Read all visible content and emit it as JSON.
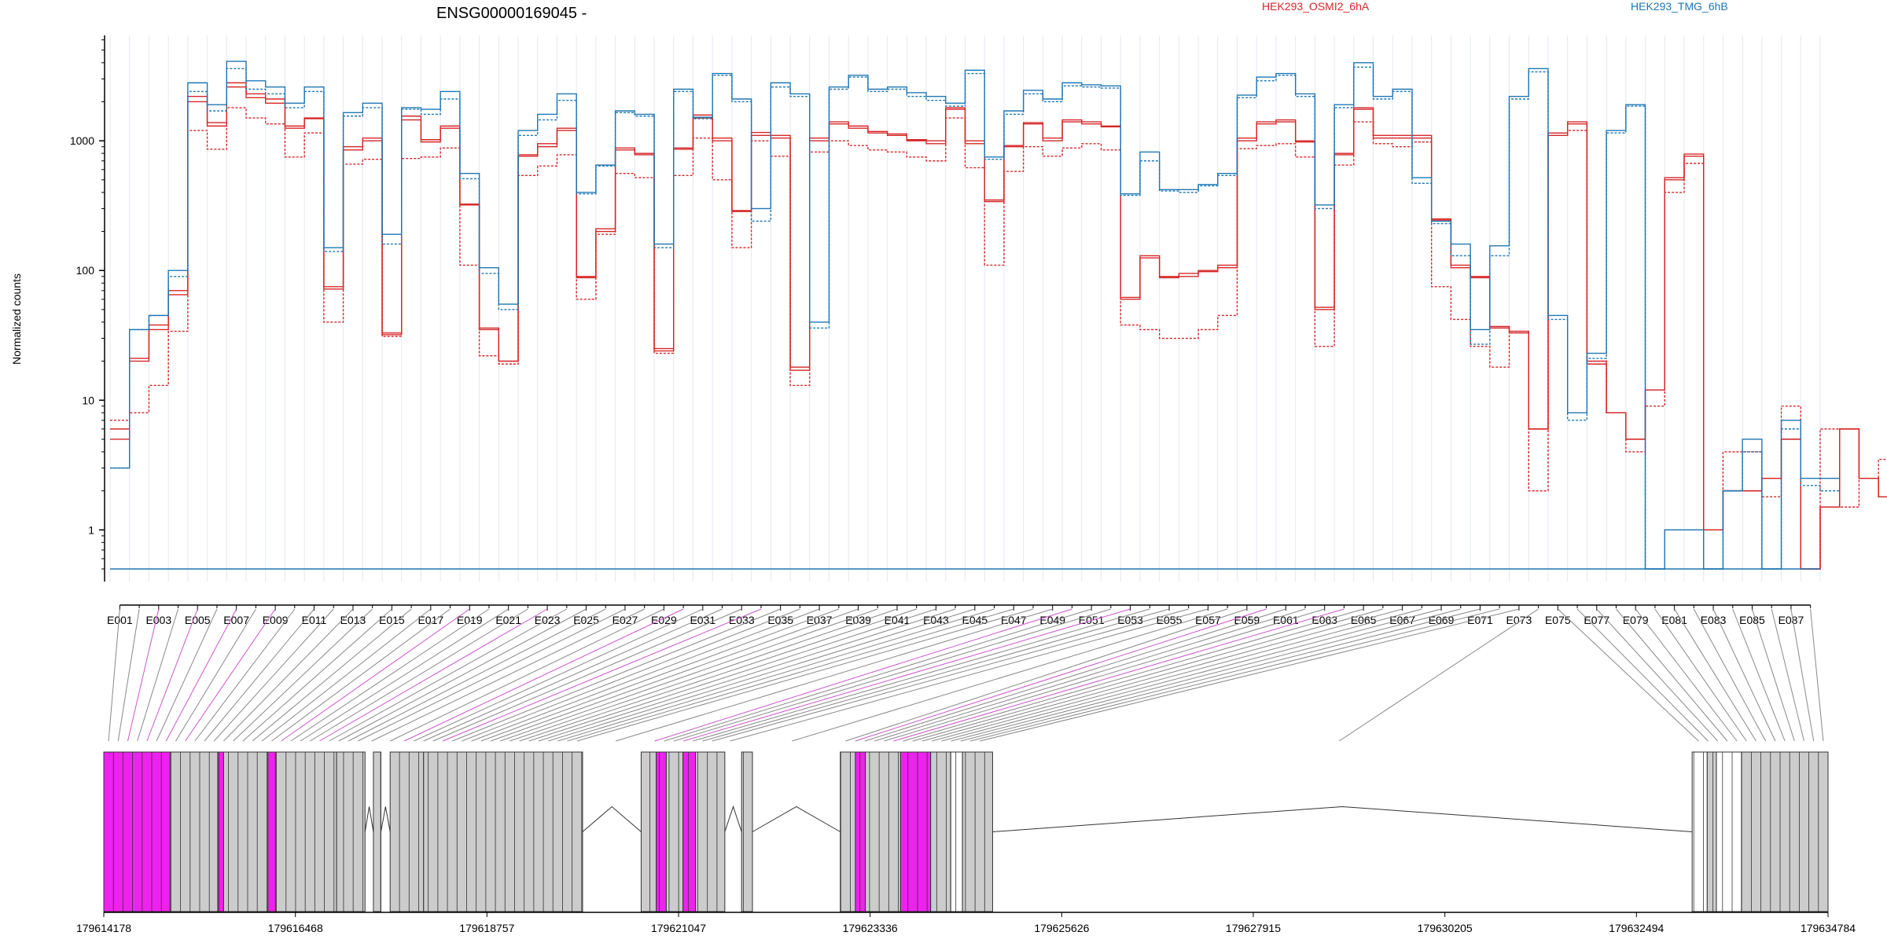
{
  "chart_data": {
    "type": "line",
    "title": "ENSG00000169045 -",
    "ylabel": "Normalized counts",
    "yscale": "log",
    "ylim": [
      0.4,
      6500
    ],
    "yticks": [
      1,
      10,
      100,
      1000
    ],
    "ytick_labels": [
      "1",
      "10",
      "100",
      "1000"
    ],
    "legend": [
      {
        "name": "HEK293_OSMI2_6hA",
        "color": "#d62728"
      },
      {
        "name": "HEK293_TMG_6hB",
        "color": "#1f77b4"
      }
    ],
    "exon_labels": [
      "E001",
      "E003",
      "E005",
      "E007",
      "E009",
      "E011",
      "E013",
      "E015",
      "E017",
      "E019",
      "E021",
      "E023",
      "E025",
      "E027",
      "E029",
      "E031",
      "E033",
      "E035",
      "E037",
      "E039",
      "E041",
      "E043",
      "E045",
      "E047",
      "E049",
      "E051",
      "E053",
      "E055",
      "E057",
      "E059",
      "E061",
      "E063",
      "E065",
      "E067",
      "E069",
      "E071",
      "E073",
      "E075",
      "E077",
      "E079",
      "E081",
      "E083",
      "E085",
      "E087"
    ],
    "n_exons": 88,
    "highlighted_exons": [
      2,
      4,
      6,
      8,
      18,
      22,
      29,
      33,
      49,
      52,
      59,
      63
    ],
    "series": [
      {
        "name": "HEK293_OSMI2_6hA rep1",
        "color": "#d62728",
        "dashed": false,
        "values": [
          5,
          21,
          38,
          70,
          2200,
          1380,
          2600,
          2150,
          1950,
          1300,
          1480,
          75,
          900,
          1050,
          32,
          1550,
          1020,
          1300,
          325,
          36,
          20,
          780,
          950,
          1250,
          90,
          210,
          880,
          800,
          25,
          880,
          1580,
          1050,
          290,
          1160,
          1100,
          18,
          1050,
          1400,
          1300,
          1180,
          1130,
          1020,
          1000,
          1800,
          1000,
          350,
          920,
          1380,
          1050,
          1450,
          1400,
          1300,
          62,
          130,
          90,
          95,
          100,
          110,
          1050,
          1400,
          1450,
          1000,
          52,
          800,
          1800,
          1100,
          1100,
          1100,
          250,
          110,
          90,
          37,
          34,
          6,
          1150,
          1400,
          20,
          8,
          5,
          12,
          520,
          790,
          1.0,
          2.0,
          2.0,
          2.5,
          5,
          0.5,
          1.5,
          6,
          2.5,
          1.8
        ]
      },
      {
        "name": "HEK293_OSMI2_6hA rep2",
        "color": "#d62728",
        "dashed": true,
        "values": [
          7,
          8,
          13,
          34,
          1200,
          860,
          1800,
          1500,
          1350,
          750,
          1150,
          40,
          660,
          720,
          31,
          730,
          750,
          880,
          110,
          22,
          19,
          540,
          640,
          780,
          60,
          190,
          560,
          520,
          23,
          540,
          1050,
          500,
          150,
          1000,
          760,
          13,
          820,
          1000,
          920,
          850,
          820,
          750,
          700,
          1500,
          620,
          110,
          580,
          900,
          760,
          880,
          950,
          850,
          38,
          35,
          30,
          30,
          35,
          45,
          870,
          920,
          950,
          750,
          26,
          650,
          1400,
          950,
          900,
          980,
          75,
          42,
          26,
          18,
          34,
          2,
          1150,
          1200,
          20,
          8,
          4,
          9,
          400,
          670,
          1.0,
          4.0,
          4.0,
          1.8,
          9,
          0.5,
          6,
          1.5,
          2.5,
          3.5
        ]
      },
      {
        "name": "HEK293_OSMI2_6hA rep3",
        "color": "#d62728",
        "dashed": false,
        "values": [
          6,
          20,
          35,
          65,
          2000,
          1300,
          2800,
          2300,
          2100,
          1250,
          1500,
          72,
          850,
          1000,
          33,
          1450,
          980,
          1250,
          320,
          35,
          20,
          760,
          900,
          1200,
          88,
          200,
          850,
          780,
          24,
          860,
          1500,
          1000,
          285,
          1100,
          1050,
          17,
          1000,
          1350,
          1250,
          1150,
          1100,
          1000,
          950,
          1750,
          950,
          340,
          900,
          1350,
          1000,
          1400,
          1350,
          1280,
          60,
          125,
          88,
          90,
          98,
          105,
          1000,
          1350,
          1400,
          980,
          50,
          780,
          1750,
          1050,
          1050,
          1050,
          245,
          105,
          88,
          36,
          33,
          6,
          1100,
          1350,
          19,
          8,
          5,
          12,
          500,
          760,
          1.0,
          2.0,
          2.0,
          2.5,
          5,
          0.5,
          1.5,
          6,
          2.5,
          1.8
        ]
      },
      {
        "name": "HEK293_TMG_6hB rep1",
        "color": "#1f77b4",
        "dashed": false,
        "values": [
          3,
          35,
          45,
          100,
          2800,
          1900,
          4100,
          2900,
          2600,
          1950,
          2600,
          150,
          1650,
          1950,
          190,
          1800,
          1750,
          2400,
          560,
          105,
          55,
          1200,
          1600,
          2300,
          400,
          650,
          1700,
          1600,
          160,
          2500,
          1520,
          3300,
          2100,
          300,
          2800,
          2300,
          40,
          2600,
          3200,
          2500,
          2600,
          2350,
          2200,
          1950,
          3500,
          750,
          1700,
          2450,
          2100,
          2800,
          2700,
          2650,
          390,
          820,
          420,
          420,
          460,
          560,
          2250,
          3100,
          3300,
          2300,
          320,
          1900,
          4000,
          2200,
          2500,
          520,
          240,
          160,
          35,
          155,
          2200,
          3600,
          45,
          8,
          23,
          1200,
          1900,
          0.5,
          1.0,
          1.0,
          0.5,
          2,
          5,
          0.5,
          7,
          2.5,
          2.5
        ]
      },
      {
        "name": "HEK293_TMG_6hB rep2",
        "color": "#1f77b4",
        "dashed": true,
        "values": [
          3,
          35,
          45,
          90,
          2400,
          1700,
          3600,
          2500,
          2300,
          1800,
          2400,
          140,
          1550,
          1800,
          160,
          1750,
          1600,
          2100,
          510,
          95,
          50,
          1100,
          1450,
          2050,
          390,
          640,
          1650,
          1550,
          150,
          2400,
          1480,
          3200,
          2000,
          240,
          2600,
          2200,
          36,
          2500,
          3100,
          2400,
          2500,
          2200,
          2050,
          1850,
          3300,
          720,
          1600,
          2300,
          2000,
          2650,
          2600,
          2550,
          380,
          700,
          410,
          400,
          450,
          540,
          2150,
          2900,
          3200,
          2200,
          300,
          1800,
          3700,
          2100,
          2400,
          470,
          230,
          130,
          27,
          130,
          2100,
          3400,
          42,
          7,
          21,
          1150,
          1850,
          0.5,
          1.0,
          1.0,
          0.5,
          2,
          4,
          0.5,
          6,
          2.2,
          2.0
        ]
      },
      {
        "name": "HEK293_TMG_6hB rep3",
        "color": "#1f77b4",
        "dashed": false,
        "values": [
          0.5,
          0.5,
          0.5,
          0.5,
          0.5,
          0.5,
          0.5,
          0.5,
          0.5,
          0.5,
          0.5,
          0.5,
          0.5,
          0.5,
          0.5,
          0.5,
          0.5,
          0.5,
          0.5,
          0.5,
          0.5,
          0.5,
          0.5,
          0.5,
          0.5,
          0.5,
          0.5,
          0.5,
          0.5,
          0.5,
          0.5,
          0.5,
          0.5,
          0.5,
          0.5,
          0.5,
          0.5,
          0.5,
          0.5,
          0.5,
          0.5,
          0.5,
          0.5,
          0.5,
          0.5,
          0.5,
          0.5,
          0.5,
          0.5,
          0.5,
          0.5,
          0.5,
          0.5,
          0.5,
          0.5,
          0.5,
          0.5,
          0.5,
          0.5,
          0.5,
          0.5,
          0.5,
          0.5,
          0.5,
          0.5,
          0.5,
          0.5,
          0.5,
          0.5,
          0.5,
          0.5,
          0.5,
          0.5,
          0.5,
          0.5,
          0.5,
          0.5,
          0.5,
          0.5,
          0.5,
          0.5,
          0.5,
          0.5,
          0.5,
          0.5,
          0.5,
          0.5,
          0.5
        ]
      }
    ],
    "genomic_axis": {
      "range": [
        179614178,
        179634784
      ],
      "ticks": [
        179614178,
        179616468,
        179618757,
        179621047,
        179623336,
        179625626,
        179627915,
        179630205,
        179632494,
        179634784
      ],
      "tick_labels": [
        "179614178",
        "179616468",
        "179618757",
        "179621047",
        "179623336",
        "179625626",
        "179627915",
        "179630205",
        "179632494",
        "179634784"
      ]
    },
    "exon_blocks": [
      {
        "start": 179614178,
        "end": 179614970,
        "fill": "pink"
      },
      {
        "start": 179614970,
        "end": 179615540,
        "fill": "grey"
      },
      {
        "start": 179615540,
        "end": 179615610,
        "fill": "pink"
      },
      {
        "start": 179615610,
        "end": 179616140,
        "fill": "grey"
      },
      {
        "start": 179616140,
        "end": 179616230,
        "fill": "pink"
      },
      {
        "start": 179616230,
        "end": 179616960,
        "fill": "grey"
      },
      {
        "start": 179616960,
        "end": 179617300,
        "fill": "grey"
      },
      {
        "start": 179617400,
        "end": 179617490,
        "fill": "grey"
      },
      {
        "start": 179617600,
        "end": 179618000,
        "fill": "grey"
      },
      {
        "start": 179618000,
        "end": 179619900,
        "fill": "grey"
      },
      {
        "start": 179620600,
        "end": 179620780,
        "fill": "grey"
      },
      {
        "start": 179620780,
        "end": 179620900,
        "fill": "pink"
      },
      {
        "start": 179620900,
        "end": 179621100,
        "fill": "grey"
      },
      {
        "start": 179621100,
        "end": 179621250,
        "fill": "pink"
      },
      {
        "start": 179621250,
        "end": 179621600,
        "fill": "grey"
      },
      {
        "start": 179621800,
        "end": 179621930,
        "fill": "grey"
      },
      {
        "start": 179622980,
        "end": 179623160,
        "fill": "grey"
      },
      {
        "start": 179623160,
        "end": 179623280,
        "fill": "pink"
      },
      {
        "start": 179623280,
        "end": 179623700,
        "fill": "grey"
      },
      {
        "start": 179623700,
        "end": 179624060,
        "fill": "pink"
      },
      {
        "start": 179624060,
        "end": 179624300,
        "fill": "grey"
      },
      {
        "start": 179624300,
        "end": 179624440,
        "fill": "white"
      },
      {
        "start": 179624440,
        "end": 179624800,
        "fill": "grey"
      },
      {
        "start": 179633160,
        "end": 179633340,
        "fill": "white"
      },
      {
        "start": 179633340,
        "end": 179633450,
        "fill": "grey"
      },
      {
        "start": 179633450,
        "end": 179633750,
        "fill": "white"
      },
      {
        "start": 179633750,
        "end": 179634784,
        "fill": "grey"
      }
    ],
    "introns": [
      {
        "start": 179617300,
        "end": 179617400
      },
      {
        "start": 179617490,
        "end": 179617600
      },
      {
        "start": 179619900,
        "end": 179620600
      },
      {
        "start": 179621600,
        "end": 179621800
      },
      {
        "start": 179621930,
        "end": 179622980
      },
      {
        "start": 179624800,
        "end": 179633160
      }
    ],
    "colors": {
      "pink": "#ee22ee",
      "grey": "#cccccc",
      "white": "#ffffff",
      "connector": "#888888",
      "connector_highlight": "#cc55cc"
    }
  }
}
